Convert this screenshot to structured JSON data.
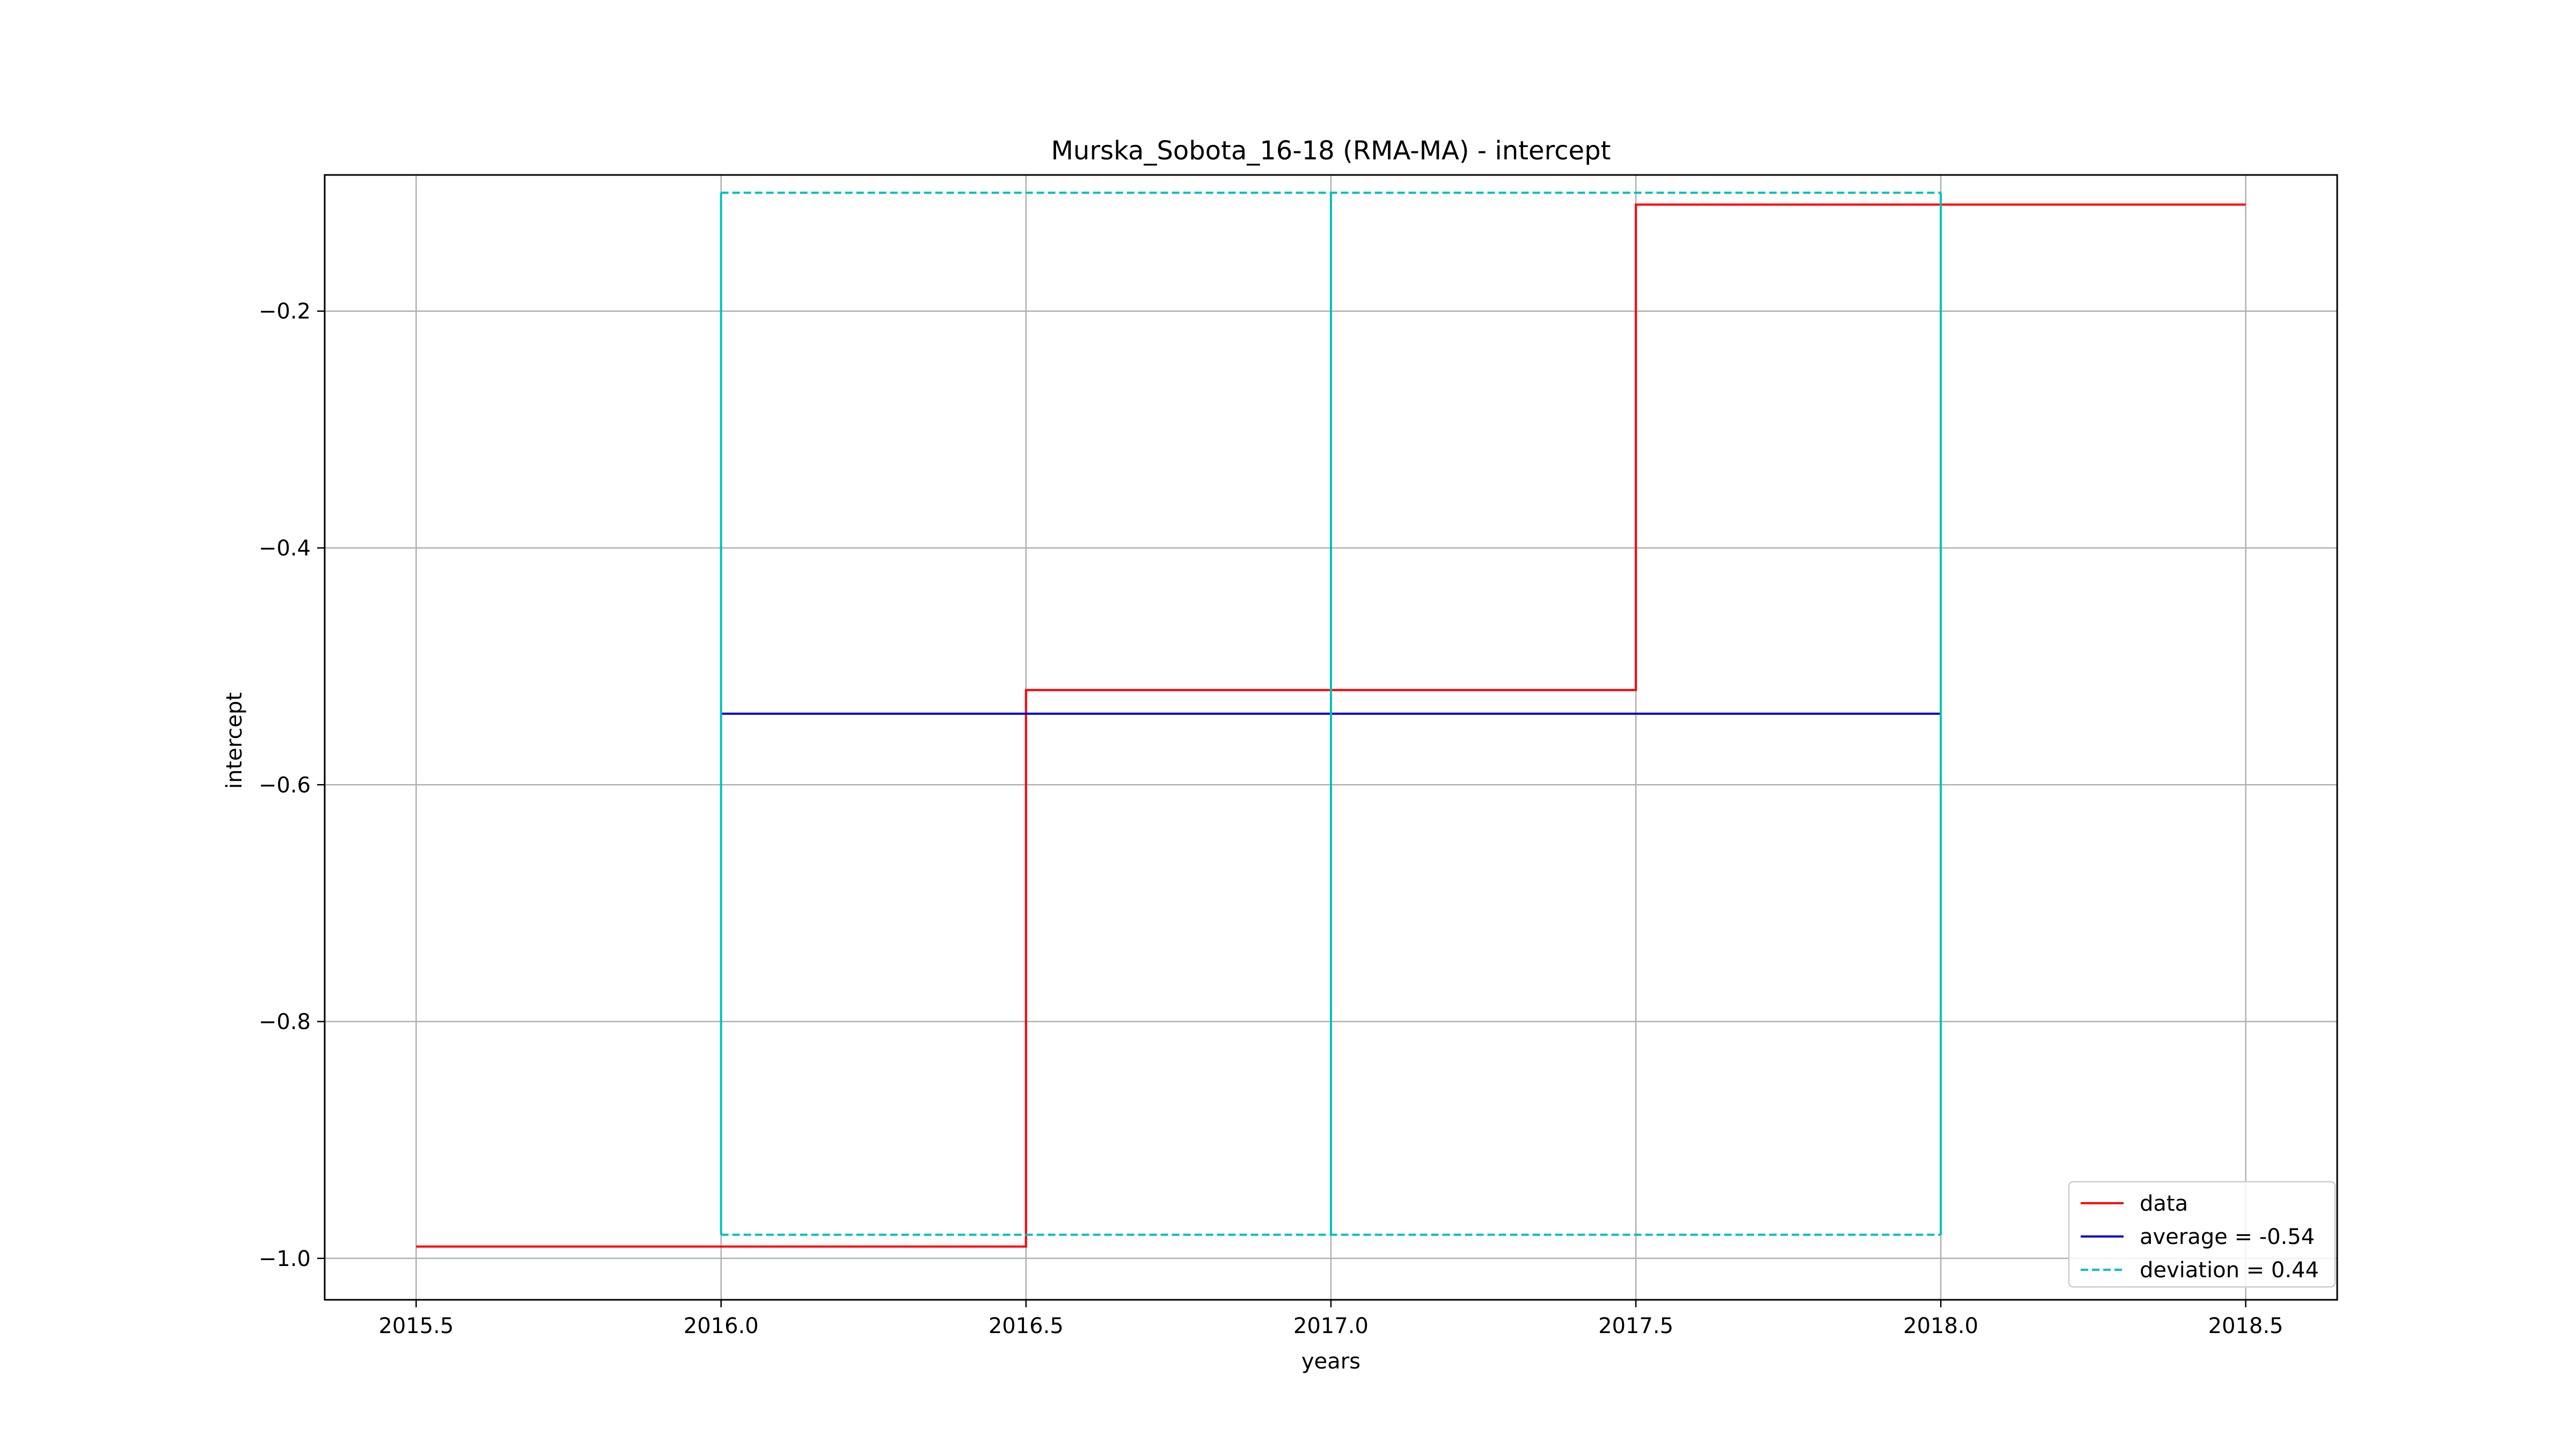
{
  "chart_data": {
    "type": "line",
    "title": "Murska_Sobota_16-18 (RMA-MA) - intercept",
    "xlabel": "years",
    "ylabel": "intercept",
    "xlim": [
      2015.35,
      2018.65
    ],
    "ylim": [
      -1.035,
      -0.085
    ],
    "grid": true,
    "legend_position": "lower-right",
    "xticks": [
      2015.5,
      2016.0,
      2016.5,
      2017.0,
      2017.5,
      2018.0,
      2018.5
    ],
    "xtick_labels": [
      "2015.5",
      "2016.0",
      "2016.5",
      "2017.0",
      "2017.5",
      "2018.0",
      "2018.5"
    ],
    "yticks": [
      -1.0,
      -0.8,
      -0.6,
      -0.4,
      -0.2
    ],
    "ytick_labels": [
      "−1.0",
      "−0.8",
      "−0.6",
      "−0.4",
      "−0.2"
    ],
    "series": [
      {
        "name": "data",
        "color": "#ff0000",
        "style": "solid",
        "x": [
          2015.5,
          2016.5,
          2016.5,
          2017.5,
          2017.5,
          2018.5
        ],
        "y": [
          -0.99,
          -0.99,
          -0.52,
          -0.52,
          -0.11,
          -0.11
        ]
      },
      {
        "name": "average = -0.54",
        "color": "#0000cc",
        "style": "solid",
        "x": [
          2016.0,
          2018.0
        ],
        "y": [
          -0.54,
          -0.54
        ]
      },
      {
        "name": "deviation = 0.44",
        "color": "#00bfbf",
        "style": "dashed",
        "x": [
          2016.0,
          2018.0
        ],
        "y": [
          -0.1,
          -0.1
        ]
      },
      {
        "name": "",
        "color": "#00bfbf",
        "style": "dashed",
        "x": [
          2016.0,
          2018.0
        ],
        "y": [
          -0.98,
          -0.98
        ]
      },
      {
        "name": "",
        "color": "#00bfbf",
        "style": "solid",
        "x": [
          2016.0,
          2016.0
        ],
        "y": [
          -0.98,
          -0.1
        ]
      },
      {
        "name": "",
        "color": "#00bfbf",
        "style": "solid",
        "x": [
          2017.0,
          2017.0
        ],
        "y": [
          -0.98,
          -0.1
        ]
      },
      {
        "name": "",
        "color": "#00bfbf",
        "style": "solid",
        "x": [
          2018.0,
          2018.0
        ],
        "y": [
          -0.98,
          -0.1
        ]
      }
    ],
    "legend": [
      {
        "label": "data",
        "color": "#ff0000",
        "style": "solid"
      },
      {
        "label": "average = -0.54",
        "color": "#0000cc",
        "style": "solid"
      },
      {
        "label": "deviation = 0.44",
        "color": "#00bfbf",
        "style": "dashed"
      }
    ]
  }
}
